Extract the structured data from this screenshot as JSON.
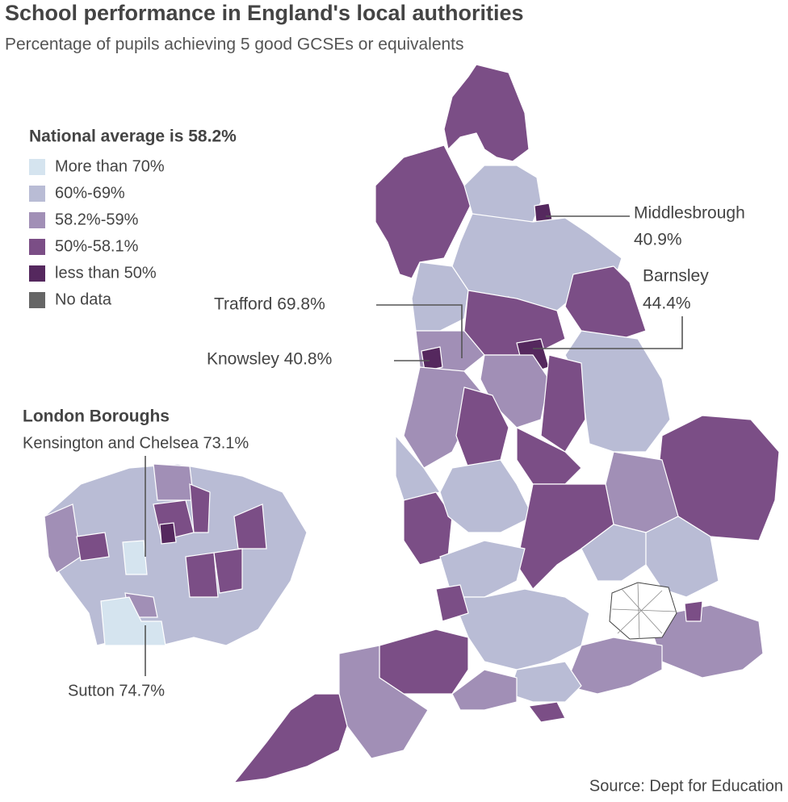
{
  "header": {
    "title": "School performance in England's local authorities",
    "subtitle": "Percentage of pupils achieving 5 good GCSEs or equivalents"
  },
  "legend": {
    "title": "National average is 58.2%",
    "items": [
      {
        "label": "More than 70%",
        "color": "#d5e4ef"
      },
      {
        "label": "60%-69%",
        "color": "#b9bcd5"
      },
      {
        "label": "58.2%-59%",
        "color": "#a18fb6"
      },
      {
        "label": "50%-58.1%",
        "color": "#7b4e86"
      },
      {
        "label": "less than 50%",
        "color": "#55285e"
      },
      {
        "label": "No data",
        "color": "#666666"
      }
    ]
  },
  "callouts": {
    "middlesbrough": {
      "name": "Middlesbrough",
      "value": "40.9%"
    },
    "barnsley": {
      "name": "Barnsley",
      "value": "44.4%"
    },
    "trafford": "Trafford 69.8%",
    "knowsley": "Knowsley 40.8%"
  },
  "london": {
    "title": "London Boroughs",
    "kensington": "Kensington and Chelsea 73.1%",
    "sutton": "Sutton 74.7%"
  },
  "source": "Source: Dept for Education"
}
